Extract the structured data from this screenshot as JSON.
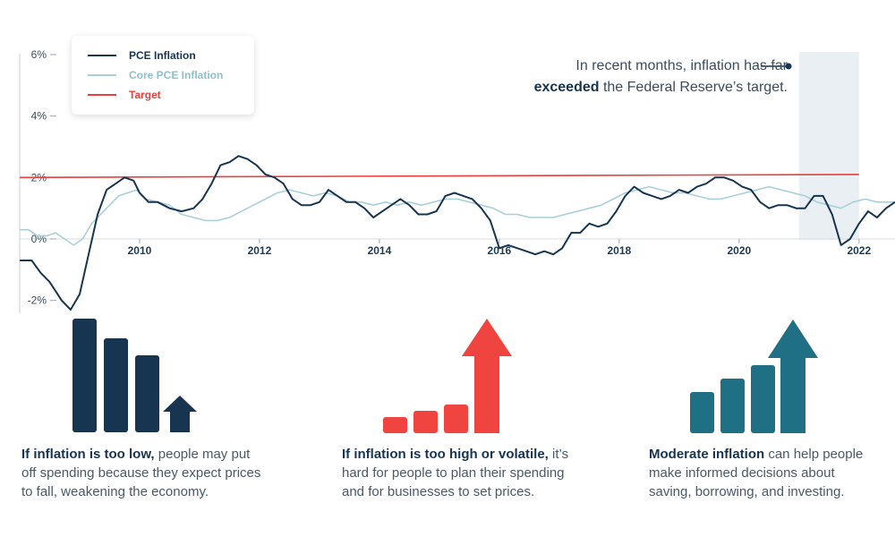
{
  "chart_data": {
    "type": "line",
    "title": "",
    "xlabel": "",
    "ylabel": "",
    "xlim": [
      2008.0,
      2022.6
    ],
    "ylim": [
      -2.5,
      6.5
    ],
    "y_ticks": [
      6,
      4,
      2,
      0,
      -2
    ],
    "y_tick_labels": [
      "6%",
      "4%",
      "2%",
      "0%",
      "-2%"
    ],
    "x_ticks": [
      2010,
      2012,
      2014,
      2016,
      2018,
      2020,
      2022
    ],
    "x_tick_labels": [
      "2010",
      "2012",
      "2014",
      "2016",
      "2018",
      "2020",
      "2022"
    ],
    "legend_position": "top-left",
    "highlight_region": [
      2021.0,
      2022.0
    ],
    "series": [
      {
        "name": "PCE Inflation",
        "color": "#173550",
        "points": [
          [
            2008.0,
            -0.7
          ],
          [
            2008.2,
            -0.7
          ],
          [
            2008.35,
            -1.1
          ],
          [
            2008.5,
            -1.4
          ],
          [
            2008.7,
            -2.0
          ],
          [
            2008.85,
            -2.3
          ],
          [
            2009.0,
            -1.8
          ],
          [
            2009.15,
            -0.5
          ],
          [
            2009.3,
            0.8
          ],
          [
            2009.45,
            1.6
          ],
          [
            2009.6,
            1.8
          ],
          [
            2009.75,
            2.0
          ],
          [
            2009.9,
            1.9
          ],
          [
            2010.0,
            1.5
          ],
          [
            2010.15,
            1.2
          ],
          [
            2010.3,
            1.2
          ],
          [
            2010.5,
            1.0
          ],
          [
            2010.7,
            0.9
          ],
          [
            2010.9,
            1.0
          ],
          [
            2011.05,
            1.3
          ],
          [
            2011.2,
            1.8
          ],
          [
            2011.35,
            2.4
          ],
          [
            2011.5,
            2.5
          ],
          [
            2011.65,
            2.7
          ],
          [
            2011.8,
            2.6
          ],
          [
            2011.95,
            2.4
          ],
          [
            2012.1,
            2.1
          ],
          [
            2012.25,
            2.0
          ],
          [
            2012.4,
            1.8
          ],
          [
            2012.55,
            1.3
          ],
          [
            2012.7,
            1.1
          ],
          [
            2012.85,
            1.1
          ],
          [
            2013.0,
            1.2
          ],
          [
            2013.15,
            1.6
          ],
          [
            2013.3,
            1.4
          ],
          [
            2013.45,
            1.2
          ],
          [
            2013.6,
            1.2
          ],
          [
            2013.75,
            1.0
          ],
          [
            2013.9,
            0.7
          ],
          [
            2014.05,
            0.9
          ],
          [
            2014.2,
            1.1
          ],
          [
            2014.35,
            1.3
          ],
          [
            2014.5,
            1.1
          ],
          [
            2014.65,
            0.8
          ],
          [
            2014.8,
            0.8
          ],
          [
            2014.95,
            0.9
          ],
          [
            2015.1,
            1.4
          ],
          [
            2015.25,
            1.5
          ],
          [
            2015.4,
            1.4
          ],
          [
            2015.55,
            1.3
          ],
          [
            2015.7,
            1.0
          ],
          [
            2015.85,
            0.6
          ],
          [
            2016.0,
            -0.3
          ],
          [
            2016.15,
            -0.2
          ],
          [
            2016.3,
            -0.3
          ],
          [
            2016.45,
            -0.4
          ],
          [
            2016.6,
            -0.5
          ],
          [
            2016.75,
            -0.4
          ],
          [
            2016.9,
            -0.5
          ],
          [
            2017.05,
            -0.3
          ],
          [
            2017.2,
            0.2
          ],
          [
            2017.35,
            0.2
          ],
          [
            2017.5,
            0.5
          ],
          [
            2017.65,
            0.4
          ],
          [
            2017.8,
            0.5
          ],
          [
            2017.95,
            0.9
          ],
          [
            2018.1,
            1.4
          ],
          [
            2018.25,
            1.7
          ],
          [
            2018.4,
            1.5
          ],
          [
            2018.55,
            1.4
          ],
          [
            2018.7,
            1.3
          ],
          [
            2018.85,
            1.4
          ],
          [
            2019.0,
            1.6
          ],
          [
            2019.15,
            1.5
          ],
          [
            2019.3,
            1.7
          ],
          [
            2019.45,
            1.8
          ],
          [
            2019.6,
            2.0
          ],
          [
            2019.75,
            2.0
          ],
          [
            2019.9,
            1.9
          ],
          [
            2020.05,
            1.7
          ],
          [
            2020.2,
            1.6
          ],
          [
            2020.35,
            1.2
          ],
          [
            2020.5,
            1.0
          ],
          [
            2020.65,
            1.1
          ],
          [
            2020.8,
            1.1
          ],
          [
            2020.95,
            1.0
          ],
          [
            2021.1,
            1.0
          ],
          [
            2021.25,
            1.4
          ],
          [
            2021.4,
            1.4
          ],
          [
            2021.55,
            0.8
          ],
          [
            2021.7,
            -0.2
          ],
          [
            2021.85,
            0.0
          ],
          [
            2022.0,
            0.5
          ],
          [
            2022.15,
            0.9
          ],
          [
            2022.3,
            0.7
          ],
          [
            2022.45,
            1.0
          ],
          [
            2022.6,
            1.2
          ]
        ]
      },
      {
        "name": "Core PCE Inflation",
        "color": "#a9cfd8",
        "points": [
          [
            2008.0,
            0.3
          ],
          [
            2008.15,
            0.3
          ],
          [
            2008.3,
            0.1
          ],
          [
            2008.45,
            0.1
          ],
          [
            2008.6,
            0.2
          ],
          [
            2008.75,
            0.0
          ],
          [
            2008.9,
            -0.2
          ],
          [
            2009.05,
            0.0
          ],
          [
            2009.2,
            0.5
          ],
          [
            2009.35,
            0.8
          ],
          [
            2009.5,
            1.1
          ],
          [
            2009.65,
            1.4
          ],
          [
            2009.8,
            1.5
          ],
          [
            2009.95,
            1.6
          ],
          [
            2010.1,
            1.3
          ],
          [
            2010.3,
            1.2
          ],
          [
            2010.5,
            1.1
          ],
          [
            2010.7,
            0.8
          ],
          [
            2010.9,
            0.7
          ],
          [
            2011.1,
            0.6
          ],
          [
            2011.3,
            0.6
          ],
          [
            2011.5,
            0.7
          ],
          [
            2011.7,
            0.9
          ],
          [
            2011.9,
            1.1
          ],
          [
            2012.1,
            1.3
          ],
          [
            2012.3,
            1.5
          ],
          [
            2012.5,
            1.6
          ],
          [
            2012.7,
            1.5
          ],
          [
            2012.9,
            1.4
          ],
          [
            2013.1,
            1.5
          ],
          [
            2013.3,
            1.4
          ],
          [
            2013.5,
            1.2
          ],
          [
            2013.7,
            1.2
          ],
          [
            2013.9,
            1.1
          ],
          [
            2014.1,
            1.2
          ],
          [
            2014.3,
            1.1
          ],
          [
            2014.5,
            1.2
          ],
          [
            2014.7,
            1.1
          ],
          [
            2014.9,
            1.2
          ],
          [
            2015.1,
            1.3
          ],
          [
            2015.3,
            1.3
          ],
          [
            2015.5,
            1.2
          ],
          [
            2015.7,
            1.1
          ],
          [
            2015.9,
            1.0
          ],
          [
            2016.1,
            0.8
          ],
          [
            2016.3,
            0.8
          ],
          [
            2016.5,
            0.7
          ],
          [
            2016.7,
            0.7
          ],
          [
            2016.9,
            0.7
          ],
          [
            2017.1,
            0.8
          ],
          [
            2017.3,
            0.9
          ],
          [
            2017.5,
            1.0
          ],
          [
            2017.7,
            1.1
          ],
          [
            2017.9,
            1.3
          ],
          [
            2018.1,
            1.5
          ],
          [
            2018.3,
            1.6
          ],
          [
            2018.5,
            1.7
          ],
          [
            2018.7,
            1.6
          ],
          [
            2018.9,
            1.5
          ],
          [
            2019.1,
            1.5
          ],
          [
            2019.3,
            1.4
          ],
          [
            2019.5,
            1.3
          ],
          [
            2019.7,
            1.3
          ],
          [
            2019.9,
            1.4
          ],
          [
            2020.1,
            1.5
          ],
          [
            2020.3,
            1.6
          ],
          [
            2020.5,
            1.7
          ],
          [
            2020.7,
            1.6
          ],
          [
            2020.9,
            1.5
          ],
          [
            2021.1,
            1.4
          ],
          [
            2021.3,
            1.2
          ],
          [
            2021.5,
            1.1
          ],
          [
            2021.7,
            1.0
          ],
          [
            2021.9,
            1.2
          ],
          [
            2022.1,
            1.3
          ],
          [
            2022.3,
            1.2
          ],
          [
            2022.6,
            1.2
          ]
        ]
      },
      {
        "name": "Target",
        "color": "#e8403d",
        "points": [
          [
            2008.0,
            2.0
          ],
          [
            2022.0,
            2.1
          ]
        ]
      }
    ]
  },
  "legend": {
    "items": [
      {
        "label": "PCE Inflation",
        "color": "#173550",
        "text_color": "#173550"
      },
      {
        "label": "Core PCE Inflation",
        "color": "#a9cfd8",
        "text_color": "#8fc0cc"
      },
      {
        "label": "Target",
        "color": "#e8403d",
        "text_color": "#e8403d"
      }
    ]
  },
  "annotation": {
    "line1": "In recent months, inflation has far",
    "bold": "exceeded",
    "rest": " the Federal Reserve’s target."
  },
  "infographics": [
    {
      "bold": "If inflation is too low,",
      "text": " people may put off spending because they expect prices to fall, weakening the economy.",
      "color": "#173550",
      "icon": "descending-bars-icon"
    },
    {
      "bold": "If inflation is too high or volatile,",
      "text": " it’s hard for people to plan their spending and for businesses to set prices.",
      "color": "#f04440",
      "icon": "rising-arrow-icon"
    },
    {
      "bold": "Moderate inflation",
      "text": " can help people make informed decisions about saving, borrowing, and investing.",
      "color": "#1f6f85",
      "icon": "steady-growth-icon"
    }
  ]
}
